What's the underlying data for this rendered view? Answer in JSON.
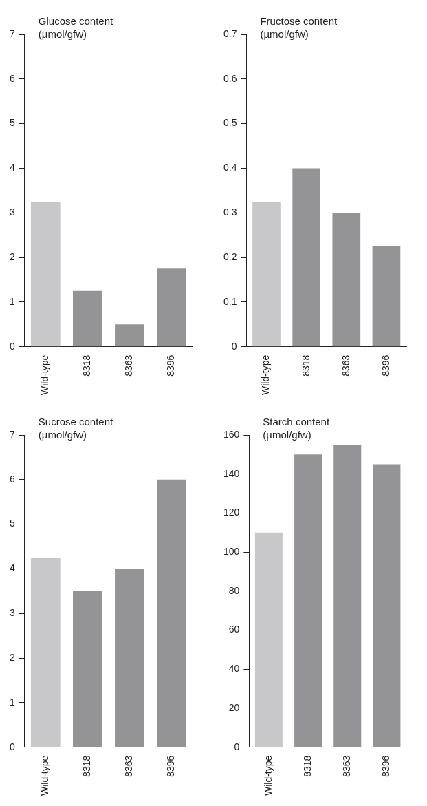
{
  "chart_data": [
    {
      "type": "bar",
      "title": "Glucose content (µmol/gfw)",
      "categories": [
        "Wild-type",
        "8318",
        "8363",
        "8396"
      ],
      "values": [
        3.25,
        1.25,
        0.5,
        1.75
      ],
      "colors": [
        "#c8c8ca",
        "#949496",
        "#949496",
        "#949496"
      ],
      "ylim": [
        0,
        7
      ],
      "yticks": [
        0,
        1,
        2,
        3,
        4,
        5,
        6,
        7
      ],
      "grid": false
    },
    {
      "type": "bar",
      "title": "Fructose content (µmol/gfw)",
      "categories": [
        "Wild-type",
        "8318",
        "8363",
        "8396"
      ],
      "values": [
        0.325,
        0.4,
        0.3,
        0.225
      ],
      "colors": [
        "#c8c8ca",
        "#949496",
        "#949496",
        "#949496"
      ],
      "ylim": [
        0,
        0.7
      ],
      "yticks": [
        0,
        0.1,
        0.2,
        0.3,
        0.4,
        0.5,
        0.6,
        0.7
      ],
      "grid": false
    },
    {
      "type": "bar",
      "title": "Sucrose content (µmol/gfw)",
      "categories": [
        "Wild-type",
        "8318",
        "8363",
        "8396"
      ],
      "values": [
        4.25,
        3.5,
        4.0,
        6.0
      ],
      "colors": [
        "#c8c8ca",
        "#949496",
        "#949496",
        "#949496"
      ],
      "ylim": [
        0,
        7
      ],
      "yticks": [
        0,
        1,
        2,
        3,
        4,
        5,
        6,
        7
      ],
      "grid": false
    },
    {
      "type": "bar",
      "title": "Starch content (µmol/gfw)",
      "categories": [
        "Wild-type",
        "8318",
        "8363",
        "8396"
      ],
      "values": [
        110,
        150,
        155,
        145
      ],
      "colors": [
        "#c8c8ca",
        "#949496",
        "#949496",
        "#949496"
      ],
      "ylim": [
        0,
        160
      ],
      "yticks": [
        0,
        20,
        40,
        60,
        80,
        100,
        120,
        140,
        160
      ],
      "grid": false
    }
  ]
}
